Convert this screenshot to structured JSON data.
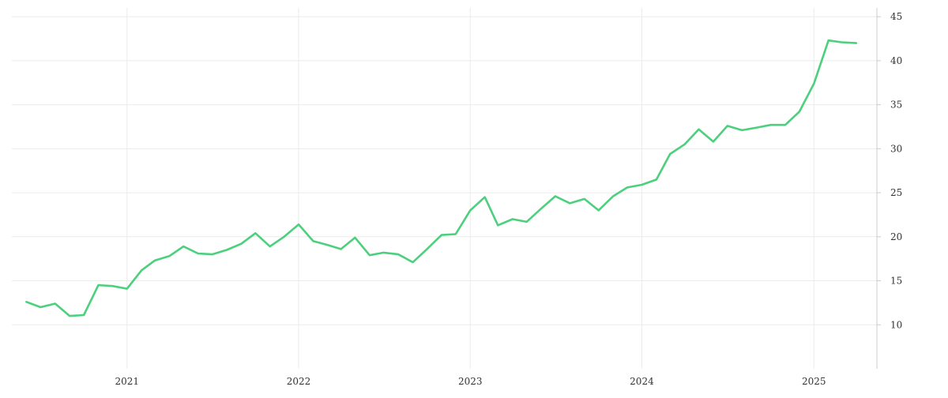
{
  "colors": {
    "line": "#4cd07d",
    "grid": "#ebebeb",
    "axis": "#cccccc",
    "text": "#333333"
  },
  "chart_data": {
    "type": "line",
    "title": "",
    "xlabel": "",
    "ylabel": "",
    "grid": true,
    "legend": "none",
    "y_axis_side": "right",
    "xlim": [
      "2020-05-01",
      "2025-05-15"
    ],
    "ylim": [
      5,
      46
    ],
    "x_ticks": [
      "2021-01-01",
      "2022-01-01",
      "2023-01-01",
      "2024-01-01",
      "2025-01-01"
    ],
    "x_tick_labels": [
      "2021",
      "2022",
      "2023",
      "2024",
      "2025"
    ],
    "y_ticks": [
      10,
      15,
      20,
      25,
      30,
      35,
      40,
      45
    ],
    "y_tick_labels": [
      "10",
      "15",
      "20",
      "25",
      "30",
      "35",
      "40",
      "45"
    ],
    "series": [
      {
        "name": "",
        "x": [
          "2020-06-01",
          "2020-07-01",
          "2020-08-01",
          "2020-09-01",
          "2020-10-01",
          "2020-11-01",
          "2020-12-01",
          "2021-01-01",
          "2021-02-01",
          "2021-03-01",
          "2021-04-01",
          "2021-05-01",
          "2021-06-01",
          "2021-07-01",
          "2021-08-01",
          "2021-09-01",
          "2021-10-01",
          "2021-11-01",
          "2021-12-01",
          "2022-01-01",
          "2022-02-01",
          "2022-03-01",
          "2022-04-01",
          "2022-05-01",
          "2022-06-01",
          "2022-07-01",
          "2022-08-01",
          "2022-09-01",
          "2022-10-01",
          "2022-11-01",
          "2022-12-01",
          "2023-01-01",
          "2023-02-01",
          "2023-03-01",
          "2023-04-01",
          "2023-05-01",
          "2023-06-01",
          "2023-07-01",
          "2023-08-01",
          "2023-09-01",
          "2023-10-01",
          "2023-11-01",
          "2023-12-01",
          "2024-01-01",
          "2024-02-01",
          "2024-03-01",
          "2024-04-01",
          "2024-05-01",
          "2024-06-01",
          "2024-07-01",
          "2024-08-01",
          "2024-09-01",
          "2024-10-01",
          "2024-11-01",
          "2024-12-01",
          "2025-01-01",
          "2025-02-01",
          "2025-03-01",
          "2025-04-01"
        ],
        "values": [
          12.6,
          12.0,
          12.4,
          11.0,
          11.1,
          14.5,
          14.4,
          14.1,
          16.2,
          17.3,
          17.8,
          18.9,
          18.1,
          18.0,
          18.5,
          19.2,
          20.4,
          18.9,
          20.0,
          21.4,
          19.5,
          19.1,
          18.6,
          19.9,
          17.9,
          18.2,
          18.0,
          17.1,
          18.6,
          20.2,
          20.3,
          23.0,
          24.5,
          21.3,
          22.0,
          21.7,
          23.2,
          24.6,
          23.8,
          24.3,
          23.0,
          24.6,
          25.6,
          25.9,
          26.5,
          29.4,
          30.5,
          32.2,
          30.8,
          32.6,
          32.1,
          32.4,
          32.7,
          32.7,
          34.2,
          37.4,
          42.3,
          42.1,
          42.0
        ]
      }
    ]
  }
}
